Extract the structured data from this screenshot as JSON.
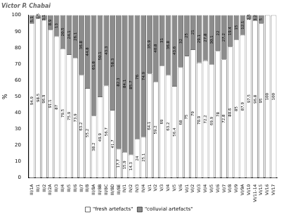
{
  "chart_data": {
    "type": "bar",
    "title": "Victor P. Chabai",
    "ylabel": "%",
    "categories": [
      "III/1A",
      "III/1",
      "III/2",
      "III/2A",
      "III/3",
      "III/4",
      "III/5",
      "III/6",
      "III/7",
      "III/8",
      "III/8A",
      "III/8B",
      "III/8C",
      "III/8D",
      "III/8E",
      "IV/1",
      "IV/2",
      "IV/3",
      "IV/4",
      "V/1",
      "V/2",
      "V/3",
      "V/4",
      "V/5",
      "V/6",
      "VI/1",
      "VI/2",
      "VI/3",
      "VI/4",
      "VI/5",
      "VI/6",
      "VI/7",
      "VI/8",
      "VI/9",
      "VI/9A",
      "VI/10",
      "VI/11-14",
      "VI/15",
      "VI/16",
      "VI/17"
    ],
    "series": [
      {
        "name": "\"fresh artefacts\"",
        "color": "#ffffff",
        "values": [
          94.9,
          98.5,
          96.9,
          91.1,
          87,
          79.5,
          75.9,
          73.9,
          63.2,
          55.2,
          38.2,
          49.9,
          56.7,
          41.7,
          17.7,
          15.9,
          14.3,
          24,
          25.1,
          64.1,
          59.2,
          69,
          63.2,
          56.4,
          68,
          75,
          79,
          70.9,
          72.2,
          69.9,
          78,
          72.8,
          80.6,
          85,
          87.9,
          97.5,
          96.8,
          95,
          100,
          100
        ]
      },
      {
        "name": "\"colluvial artefacts\"",
        "color": "#8c8c8c",
        "values": [
          5.1,
          1.5,
          3.1,
          8.9,
          13,
          20.5,
          24.1,
          26.1,
          36.8,
          44.8,
          61.8,
          50.1,
          43.3,
          58.3,
          82.3,
          84.1,
          85.7,
          76,
          74.9,
          35.9,
          40.8,
          31,
          36.8,
          43.6,
          32,
          25,
          21,
          29.1,
          27.8,
          30.1,
          22,
          27.2,
          19.4,
          15,
          12.1,
          2.5,
          3.2,
          5,
          0,
          0
        ]
      }
    ],
    "stacked": true,
    "data_labels": true,
    "legend": "bottom",
    "grid": false,
    "ylim": [
      0,
      100
    ],
    "yticks": [
      0,
      10,
      20,
      30,
      40,
      50,
      60,
      70,
      80,
      90,
      100
    ]
  }
}
